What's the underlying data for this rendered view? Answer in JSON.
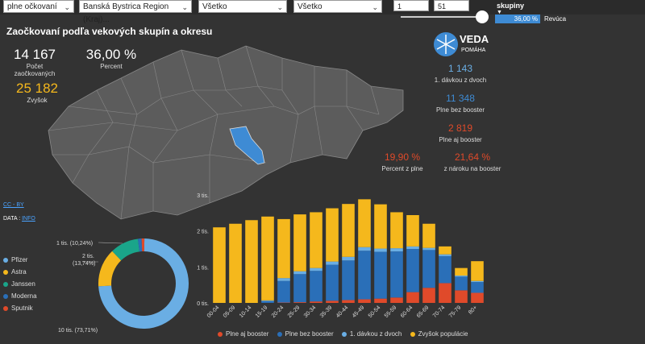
{
  "filters": {
    "status": "plne očkovaní",
    "region": "Banská Bystrica Region (Kraj)...",
    "filter3": "Všetko",
    "filter4": "Všetko",
    "range_from": "1",
    "range_to": "51"
  },
  "legend_top": {
    "title": "skupiny",
    "bar_value": "36,00 %",
    "bar_label": "Revúca"
  },
  "title": "Zaočkovaní podľa vekových skupín a okresu",
  "kpis": {
    "vaccinated_value": "14 167",
    "vaccinated_label": "Počet zaočkovaných",
    "percent_value": "36,00 %",
    "percent_label": "Percent",
    "rest_value": "25 182",
    "rest_label": "Zvyšok"
  },
  "right_kpis": {
    "dose1_value": "1 143",
    "dose1_label": "1. dávkou z dvoch",
    "full_nobooster_value": "11 348",
    "full_nobooster_label": "Plne bez booster",
    "full_booster_value": "2 819",
    "full_booster_label": "Plne aj booster",
    "pct_full_value": "19,90 %",
    "pct_full_label": "Percent z plne",
    "pct_claim_value": "21,64 %",
    "pct_claim_label": "z nároku na booster"
  },
  "logo": {
    "line1": "VEDA",
    "line2": "POMÁHA"
  },
  "links": {
    "license": "CC - BY",
    "data_prefix": "DATA : ",
    "data_link": "INFO"
  },
  "colors": {
    "accent_blue": "#3e8bd4",
    "orange": "#f5b81c",
    "red": "#e04a2a",
    "teal": "#1aa58a",
    "map_fill": "#5c5c5c",
    "highlight": "#3e8bd4"
  },
  "pie": {
    "legend": [
      {
        "name": "Pfizer",
        "color": "#6aaee4"
      },
      {
        "name": "Astra",
        "color": "#f5b81c"
      },
      {
        "name": "Janssen",
        "color": "#1aa58a"
      },
      {
        "name": "Moderna",
        "color": "#2a6fb8"
      },
      {
        "name": "Sputnik",
        "color": "#e04a2a"
      }
    ],
    "labels": {
      "top": "1 tis. (10,24%)",
      "mid1": "2 tis.",
      "mid2": "(13,74%)",
      "bottom": "10 tis. (73,71%)"
    }
  },
  "chart_data": {
    "type": "bar",
    "stacked": true,
    "categories": [
      "00-04",
      "05-09",
      "10-14",
      "15-19",
      "20-24",
      "25-29",
      "30-34",
      "35-39",
      "40-44",
      "45-49",
      "50-54",
      "55-59",
      "60-64",
      "65-69",
      "70-74",
      "75-79",
      "80+"
    ],
    "ylim": [
      0,
      3000
    ],
    "yticks": [
      "0 tis.",
      "1 tis.",
      "2 tis.",
      "3 tis."
    ],
    "series": [
      {
        "name": "Plne aj booster",
        "color": "#e04a2a",
        "values": [
          0,
          0,
          0,
          0,
          10,
          20,
          40,
          60,
          80,
          100,
          120,
          150,
          300,
          420,
          550,
          350,
          280
        ]
      },
      {
        "name": "Plne bez booster",
        "color": "#2a6fb8",
        "values": [
          0,
          0,
          0,
          50,
          600,
          780,
          850,
          1000,
          1100,
          1350,
          1300,
          1280,
          1200,
          1050,
          750,
          380,
          300
        ]
      },
      {
        "name": "1. dávkou z dvoch",
        "color": "#6aaee4",
        "values": [
          0,
          0,
          0,
          20,
          80,
          80,
          80,
          90,
          100,
          100,
          90,
          90,
          70,
          60,
          50,
          30,
          30
        ]
      },
      {
        "name": "Zvyšok populácie",
        "color": "#f5b81c",
        "values": [
          2100,
          2200,
          2300,
          2330,
          1640,
          1580,
          1550,
          1480,
          1470,
          1330,
          1230,
          1000,
          870,
          670,
          220,
          210,
          550
        ]
      }
    ]
  }
}
